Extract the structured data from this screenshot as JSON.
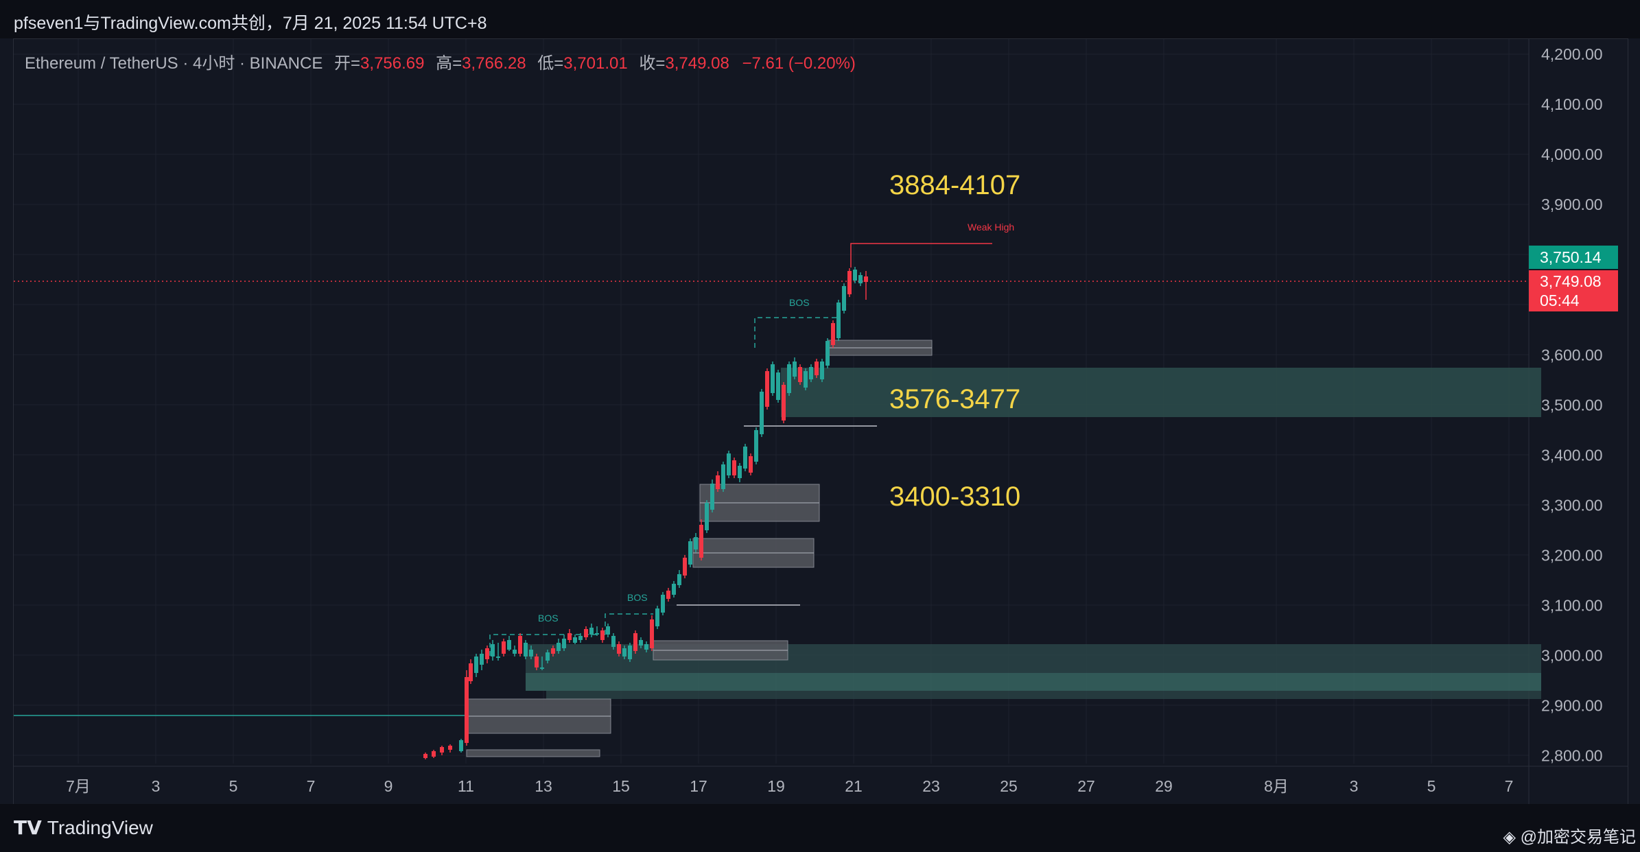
{
  "header": {
    "title": "pfseven1与TradingView.com共创，7月 21, 2025 11:54 UTC+8"
  },
  "legend": {
    "symbol": "Ethereum / TetherUS · 4小时 · BINANCE",
    "open_label": "开=",
    "open": "3,756.69",
    "high_label": "高=",
    "high": "3,766.28",
    "low_label": "低=",
    "low": "3,701.01",
    "close_label": "收=",
    "close": "3,749.08",
    "change": "−7.61 (−0.20%)"
  },
  "price_axis": {
    "ticks": [
      "4,200.00",
      "4,100.00",
      "4,000.00",
      "3,900.00",
      "3,600.00",
      "3,500.00",
      "3,400.00",
      "3,300.00",
      "3,200.00",
      "3,100.00",
      "3,000.00",
      "2,900.00",
      "2,800.00"
    ],
    "tick_values": [
      4200,
      4100,
      4000,
      3900,
      3600,
      3500,
      3400,
      3300,
      3200,
      3100,
      3000,
      2900,
      2800
    ],
    "label_high": "3,750.14",
    "label_last": "3,749.08",
    "label_countdown": "05:44"
  },
  "time_axis": {
    "labels": [
      "7月",
      "3",
      "5",
      "7",
      "9",
      "11",
      "13",
      "15",
      "17",
      "19",
      "21",
      "23",
      "25",
      "27",
      "29",
      "8月",
      "3",
      "5",
      "7"
    ]
  },
  "annotations": {
    "zone1": "3884-4107",
    "zone2": "3576-3477",
    "zone3": "3400-3310",
    "weak_high": "Weak High",
    "bos1": "BOS",
    "bos2": "BOS",
    "bos3": "BOS"
  },
  "colors": {
    "up": "#26a69a",
    "down": "#f23645",
    "zone_text": "#f5d547",
    "current_price": "#f23645",
    "high_label_bg": "#089981"
  },
  "footer": {
    "brand": "TradingView",
    "watermark": "@加密交易笔记"
  }
}
